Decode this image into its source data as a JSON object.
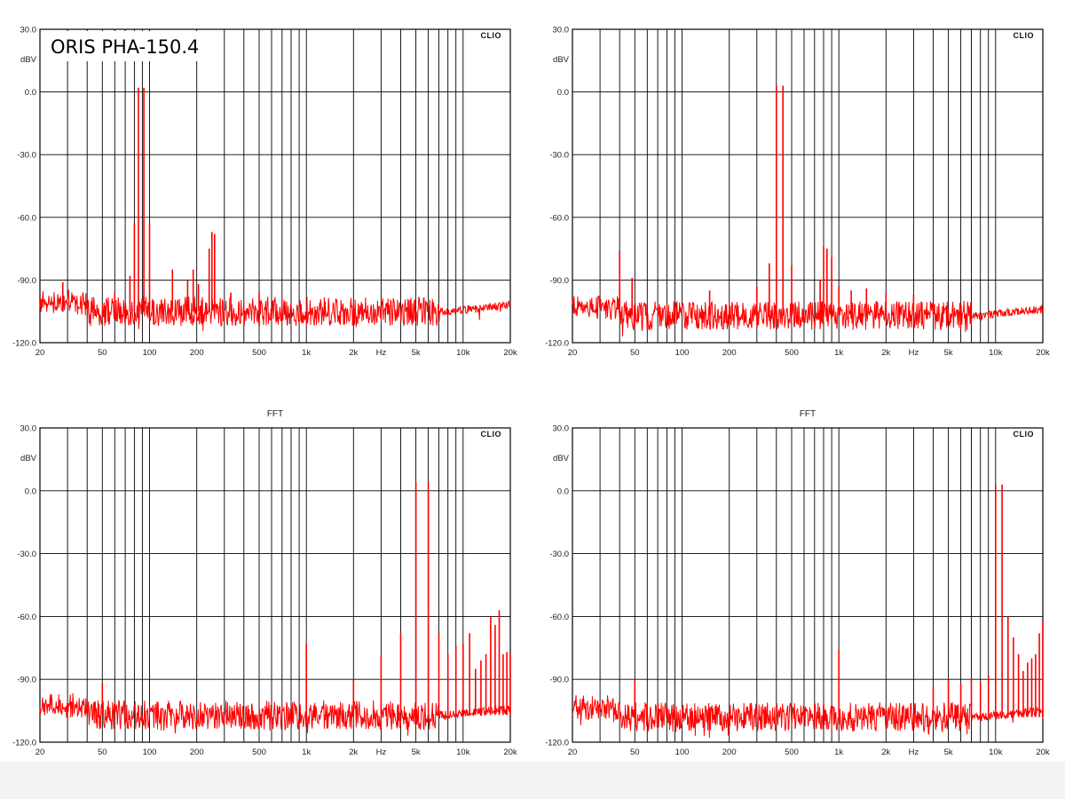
{
  "product_label": "ORIS PHA-150.4",
  "colors": {
    "trace": "#ff0000",
    "grid": "#000000",
    "frame": "#000000",
    "background": "#ffffff",
    "footer": "#f3f3f3"
  },
  "chart_data": [
    {
      "type": "line",
      "title": "",
      "brand": "CLIO",
      "xscale": "log",
      "xlim": [
        20,
        20000
      ],
      "ylim": [
        -120,
        30
      ],
      "ylabel": "dBV",
      "xlabel_inline": "Hz",
      "x_ticks": [
        "20",
        "50",
        "100",
        "200",
        "500",
        "1k",
        "2k",
        "Hz",
        "5k",
        "10k",
        "20k"
      ],
      "y_ticks": [
        "30.0",
        "0.0",
        "-30.0",
        "-60.0",
        "-90.0",
        "-120.0"
      ],
      "noise_floor_dbv": -105,
      "series": [
        {
          "peaks_x": [
            28,
            60,
            75,
            80,
            85,
            92,
            100,
            140,
            175,
            190,
            205,
            240,
            250,
            260,
            330,
            500
          ],
          "peaks_y": [
            -91,
            -96,
            -88,
            -63,
            2,
            2,
            -63,
            -85,
            -90,
            -85,
            -92,
            -75,
            -67,
            -68,
            -96,
            -96
          ]
        }
      ]
    },
    {
      "type": "line",
      "title": "",
      "brand": "CLIO",
      "xscale": "log",
      "xlim": [
        20,
        20000
      ],
      "ylim": [
        -120,
        30
      ],
      "ylabel": "dBV",
      "xlabel_inline": "Hz",
      "x_ticks": [
        "20",
        "50",
        "100",
        "200",
        "500",
        "1k",
        "2k",
        "Hz",
        "5k",
        "10k",
        "20k"
      ],
      "y_ticks": [
        "30.0",
        "0.0",
        "-30.0",
        "-60.0",
        "-90.0",
        "-120.0"
      ],
      "noise_floor_dbv": -107,
      "series": [
        {
          "peaks_x": [
            40,
            48,
            150,
            300,
            360,
            400,
            440,
            500,
            760,
            800,
            840,
            900,
            1000,
            1200,
            1500,
            2000,
            3000
          ],
          "peaks_y": [
            -76,
            -89,
            -95,
            -93,
            -82,
            3,
            3,
            -83,
            -90,
            -74,
            -75,
            -79,
            -93,
            -95,
            -94,
            -96,
            -97
          ]
        }
      ]
    },
    {
      "type": "line",
      "title": "FFT",
      "brand": "CLIO",
      "xscale": "log",
      "xlim": [
        20,
        20000
      ],
      "ylim": [
        -120,
        30
      ],
      "ylabel": "dBV",
      "xlabel_inline": "Hz",
      "x_ticks": [
        "20",
        "50",
        "100",
        "200",
        "500",
        "1k",
        "2k",
        "Hz",
        "5k",
        "10k",
        "20k"
      ],
      "y_ticks": [
        "30.0",
        "0.0",
        "-30.0",
        "-60.0",
        "-90.0",
        "-120.0"
      ],
      "noise_floor_dbv": -107,
      "series": [
        {
          "peaks_x": [
            50,
            1000,
            2000,
            3000,
            4000,
            5000,
            6000,
            7000,
            8000,
            9000,
            10000,
            11000,
            12000,
            13000,
            14000,
            15000,
            16000,
            17000,
            18000,
            19000,
            20000
          ],
          "peaks_y": [
            -92,
            -73,
            -90,
            -79,
            -68,
            4,
            4,
            -68,
            -78,
            -74,
            -73,
            -68,
            -85,
            -81,
            -78,
            -60,
            -64,
            -57,
            -78,
            -77,
            -78
          ]
        }
      ]
    },
    {
      "type": "line",
      "title": "FFT",
      "brand": "CLIO",
      "xscale": "log",
      "xlim": [
        20,
        20000
      ],
      "ylim": [
        -120,
        30
      ],
      "ylabel": "dBV",
      "xlabel_inline": "Hz",
      "x_ticks": [
        "20",
        "50",
        "100",
        "200",
        "500",
        "1k",
        "2k",
        "Hz",
        "5k",
        "10k",
        "20k"
      ],
      "y_ticks": [
        "30.0",
        "0.0",
        "-30.0",
        "-60.0",
        "-90.0",
        "-120.0"
      ],
      "noise_floor_dbv": -108,
      "series": [
        {
          "peaks_x": [
            50,
            1000,
            4000,
            5000,
            6000,
            7000,
            8000,
            9000,
            10000,
            11000,
            12000,
            13000,
            14000,
            15000,
            16000,
            17000,
            18000,
            19000,
            20000
          ],
          "peaks_y": [
            -90,
            -76,
            -94,
            -90,
            -92,
            -89,
            -91,
            -88,
            3,
            3,
            -60,
            -70,
            -78,
            -86,
            -82,
            -80,
            -78,
            -68,
            -62
          ]
        }
      ]
    }
  ]
}
